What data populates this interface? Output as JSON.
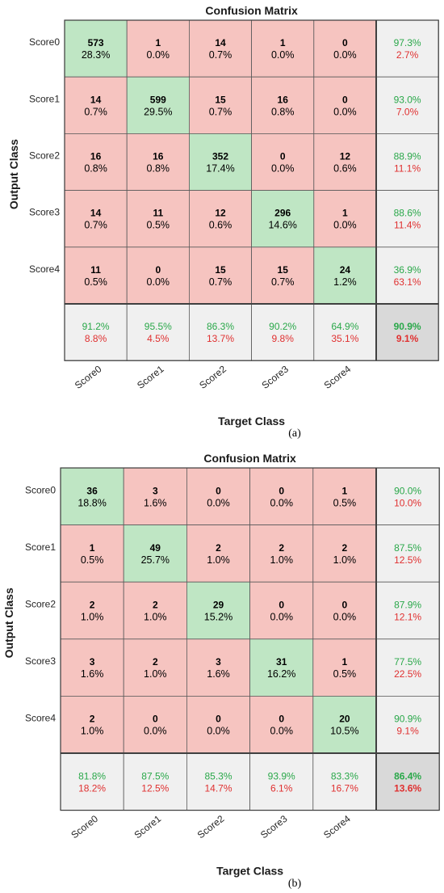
{
  "chart_data": [
    {
      "type": "heatmap",
      "title": "Confusion Matrix",
      "xlabel": "Target Class",
      "ylabel": "Output Class",
      "classes": [
        "Score0",
        "Score1",
        "Score2",
        "Score3",
        "Score4"
      ],
      "matrix": [
        [
          573,
          1,
          14,
          1,
          0
        ],
        [
          14,
          599,
          15,
          16,
          0
        ],
        [
          16,
          16,
          352,
          0,
          12
        ],
        [
          14,
          11,
          12,
          296,
          1
        ],
        [
          11,
          0,
          15,
          15,
          24
        ]
      ],
      "matrix_pct": [
        [
          "28.3%",
          "0.0%",
          "0.7%",
          "0.0%",
          "0.0%"
        ],
        [
          "0.7%",
          "29.5%",
          "0.7%",
          "0.8%",
          "0.0%"
        ],
        [
          "0.8%",
          "0.8%",
          "17.4%",
          "0.0%",
          "0.6%"
        ],
        [
          "0.7%",
          "0.5%",
          "0.6%",
          "14.6%",
          "0.0%"
        ],
        [
          "0.5%",
          "0.0%",
          "0.7%",
          "0.7%",
          "1.2%"
        ]
      ],
      "row_summary": [
        [
          "97.3%",
          "2.7%"
        ],
        [
          "93.0%",
          "7.0%"
        ],
        [
          "88.9%",
          "11.1%"
        ],
        [
          "88.6%",
          "11.4%"
        ],
        [
          "36.9%",
          "63.1%"
        ]
      ],
      "col_summary": [
        [
          "91.2%",
          "8.8%"
        ],
        [
          "95.5%",
          "4.5%"
        ],
        [
          "86.3%",
          "13.7%"
        ],
        [
          "90.2%",
          "9.8%"
        ],
        [
          "64.9%",
          "35.1%"
        ]
      ],
      "overall": [
        "90.9%",
        "9.1%"
      ],
      "caption": "(a)"
    },
    {
      "type": "heatmap",
      "title": "Confusion Matrix",
      "xlabel": "Target Class",
      "ylabel": "Output Class",
      "classes": [
        "Score0",
        "Score1",
        "Score2",
        "Score3",
        "Score4"
      ],
      "matrix": [
        [
          36,
          3,
          0,
          0,
          1
        ],
        [
          1,
          49,
          2,
          2,
          2
        ],
        [
          2,
          2,
          29,
          0,
          0
        ],
        [
          3,
          2,
          3,
          31,
          1
        ],
        [
          2,
          0,
          0,
          0,
          20
        ]
      ],
      "matrix_pct": [
        [
          "18.8%",
          "1.6%",
          "0.0%",
          "0.0%",
          "0.5%"
        ],
        [
          "0.5%",
          "25.7%",
          "1.0%",
          "1.0%",
          "1.0%"
        ],
        [
          "1.0%",
          "1.0%",
          "15.2%",
          "0.0%",
          "0.0%"
        ],
        [
          "1.6%",
          "1.0%",
          "1.6%",
          "16.2%",
          "0.5%"
        ],
        [
          "1.0%",
          "0.0%",
          "0.0%",
          "0.0%",
          "10.5%"
        ]
      ],
      "row_summary": [
        [
          "90.0%",
          "10.0%"
        ],
        [
          "87.5%",
          "12.5%"
        ],
        [
          "87.9%",
          "12.1%"
        ],
        [
          "77.5%",
          "22.5%"
        ],
        [
          "90.9%",
          "9.1%"
        ]
      ],
      "col_summary": [
        [
          "81.8%",
          "18.2%"
        ],
        [
          "87.5%",
          "12.5%"
        ],
        [
          "85.3%",
          "14.7%"
        ],
        [
          "93.9%",
          "6.1%"
        ],
        [
          "83.3%",
          "16.7%"
        ]
      ],
      "overall": [
        "86.4%",
        "13.6%"
      ],
      "caption": "(b)"
    }
  ],
  "colors": {
    "diagonal": "#bfe6c4",
    "off_diagonal": "#f6c4c0",
    "summary": "#f0f0f0",
    "overall": "#d9d9d9",
    "good_text": "#2aa84a",
    "bad_text": "#e03030"
  }
}
